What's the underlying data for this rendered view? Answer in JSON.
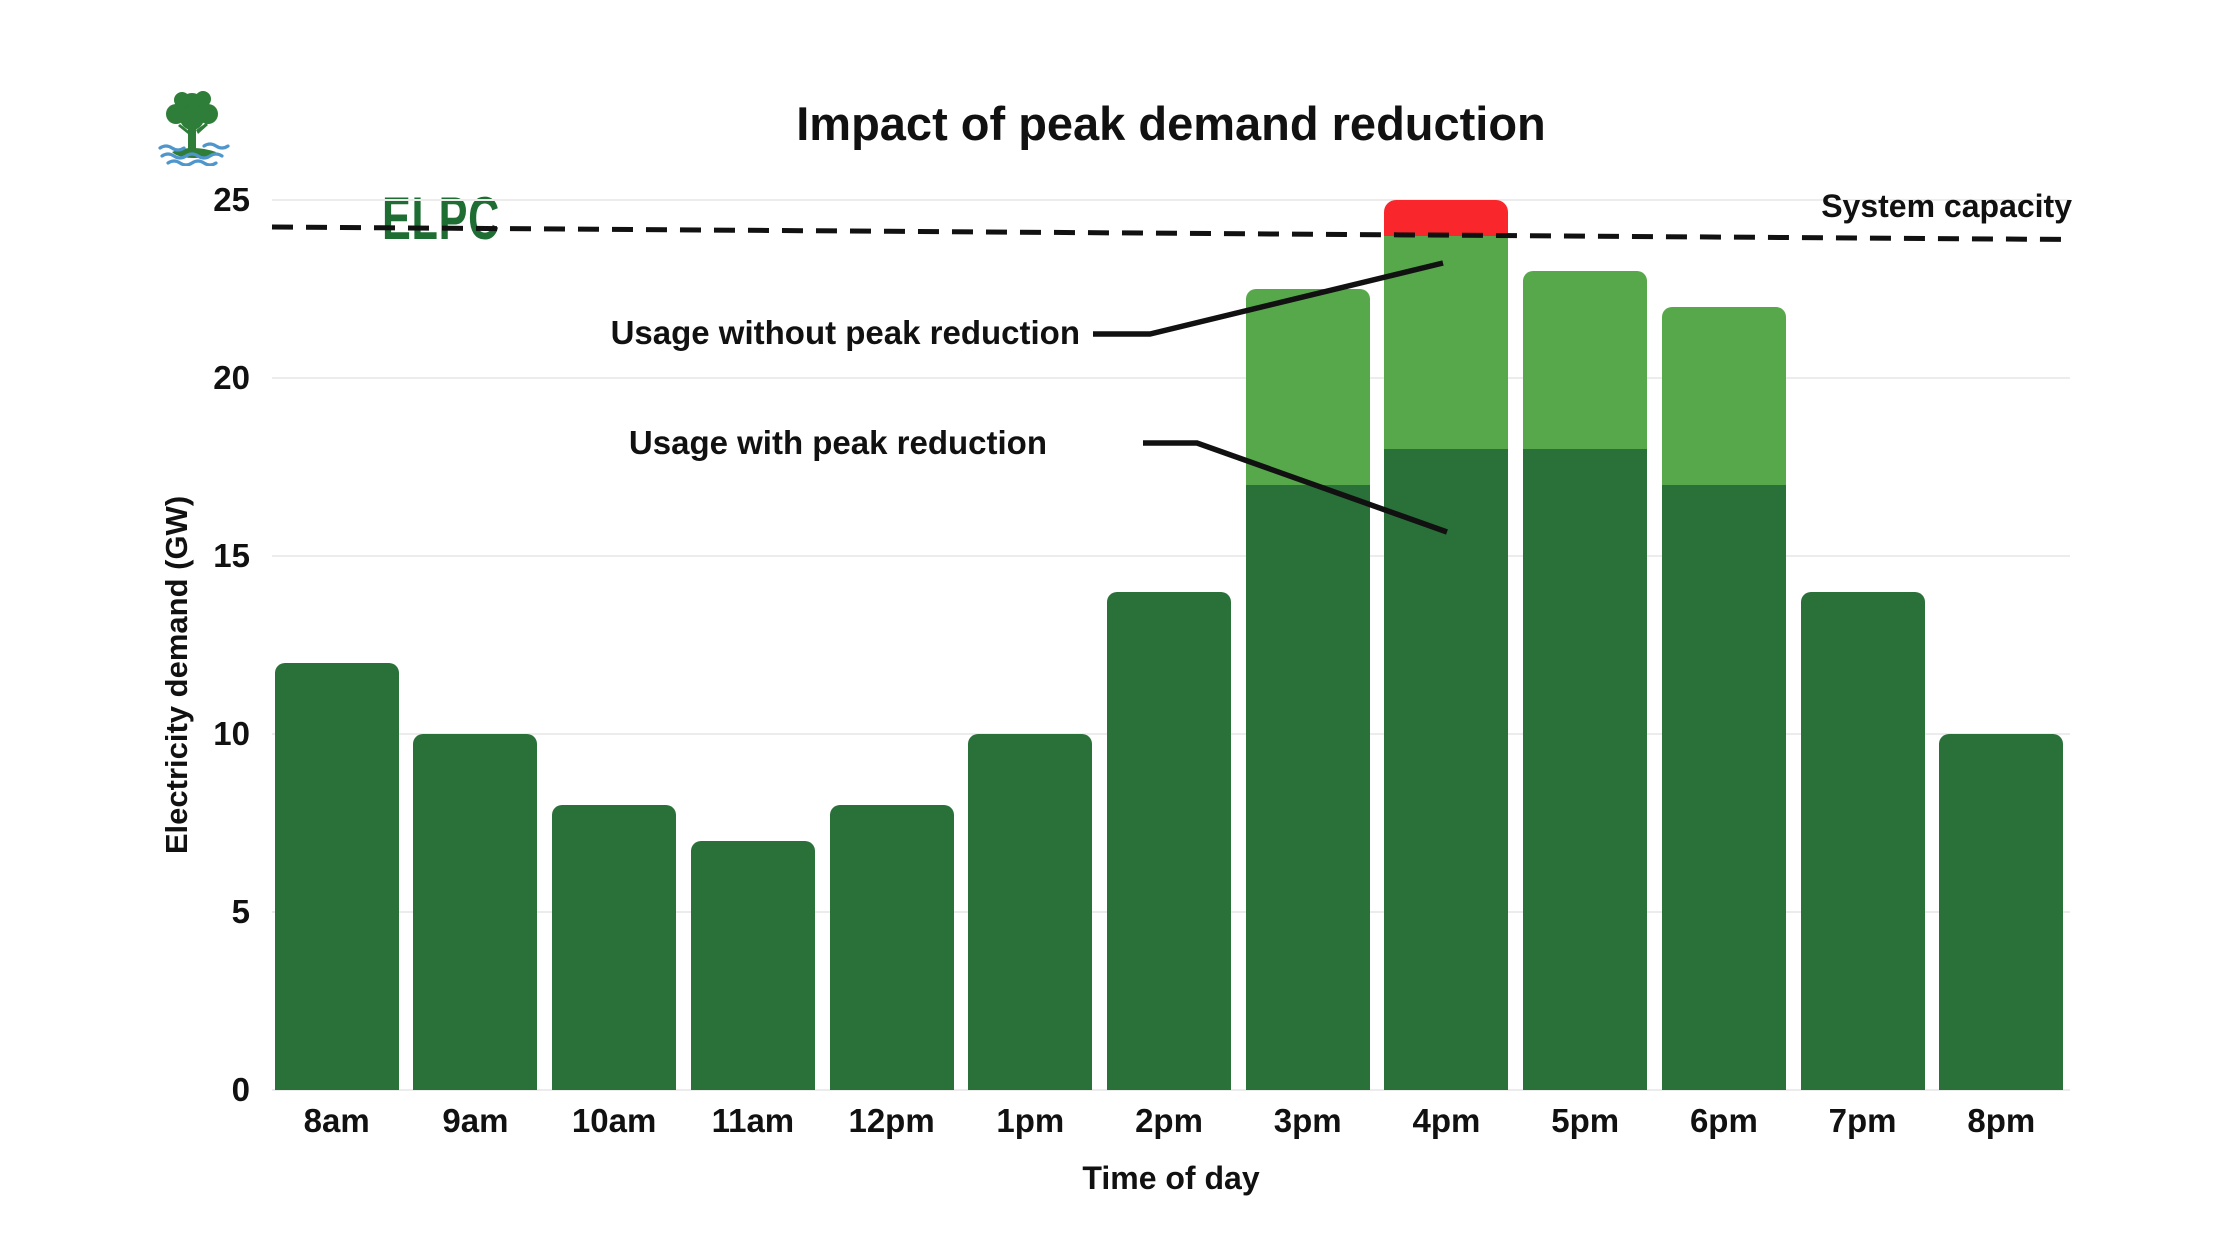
{
  "logo": {
    "org": "ELPC",
    "icon": "tree-over-water-logo",
    "green": "#1e6e34",
    "tree_green": "#2e7d38",
    "water_blue": "#4e96cc"
  },
  "capacity_label": "System capacity",
  "annotations": {
    "without": "Usage without peak reduction",
    "with": "Usage with peak reduction"
  },
  "colors": {
    "with_reduction": "#2a7039",
    "without_reduction": "#56a84a",
    "over_capacity": "#f9272b",
    "capacity_line": "#111111",
    "gridline": "#ececec",
    "text": "#111111"
  },
  "chart_data": {
    "type": "bar",
    "stacked": true,
    "title": "Impact of peak demand reduction",
    "xlabel": "Time of day",
    "ylabel": "Electricity demand (GW)",
    "categories": [
      "8am",
      "9am",
      "10am",
      "11am",
      "12pm",
      "1pm",
      "2pm",
      "3pm",
      "4pm",
      "5pm",
      "6pm",
      "7pm",
      "8pm"
    ],
    "series": [
      {
        "name": "Usage with peak reduction",
        "color": "#2a7039",
        "values": [
          12,
          10,
          8,
          7,
          8,
          10,
          14,
          17,
          18,
          18,
          17,
          14,
          10
        ]
      },
      {
        "name": "Usage without peak reduction",
        "color": "#56a84a",
        "values": [
          12,
          10,
          8,
          7,
          8,
          10,
          14,
          22.5,
          25,
          23,
          22,
          14,
          10
        ]
      }
    ],
    "capacity_gw": 24,
    "over_capacity_color": "#f9272b",
    "capacity_line_label": "System capacity",
    "capacity_line_style": "dashed",
    "y_ticks": [
      0,
      5,
      10,
      15,
      20,
      25
    ],
    "ylim": [
      0,
      25
    ],
    "grid": true,
    "legend": "inline-annotations"
  }
}
